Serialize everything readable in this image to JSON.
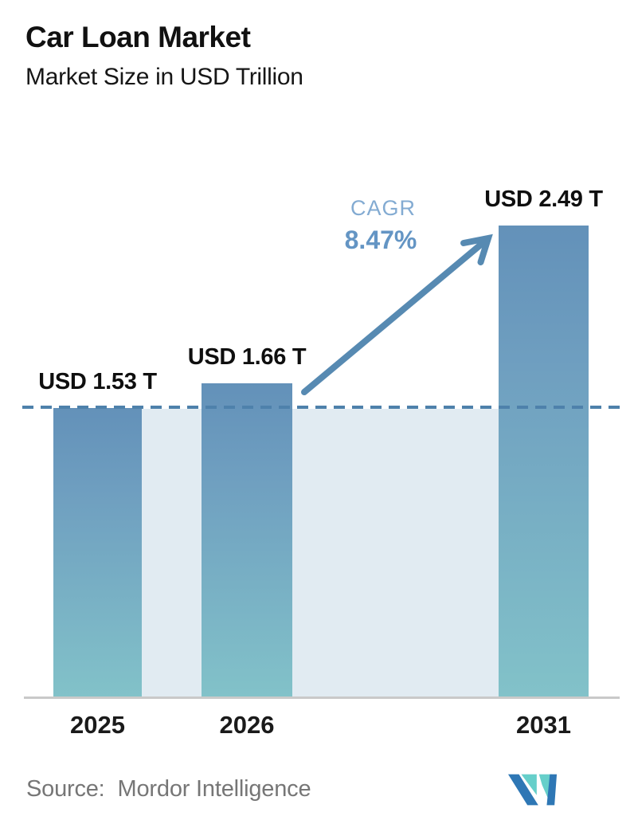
{
  "header": {
    "title": "Car Loan Market",
    "subtitle": "Market Size in USD Trillion"
  },
  "chart_data": {
    "type": "bar",
    "categories": [
      "2025",
      "2026",
      "2031"
    ],
    "values": [
      1.53,
      1.66,
      2.49
    ],
    "value_labels": [
      "USD 1.53 T",
      "USD 1.66 T",
      "USD 2.49 T"
    ],
    "title": "Car Loan Market",
    "subtitle": "Market Size in USD Trillion",
    "unit": "USD Trillion",
    "ylim": [
      0,
      2.49
    ],
    "baseline_reference_value": 1.53,
    "gridlines": "none",
    "annotations": {
      "cagr_label": "CAGR",
      "cagr_value": "8.47%"
    }
  },
  "footer": {
    "source_label": "Source:",
    "source_name": "Mordor Intelligence",
    "logo_name": "mordor-intelligence-logo"
  },
  "colors": {
    "bar_gradient_top": "#6391b9",
    "bar_gradient_bottom": "#82c2c9",
    "baseline_band": "#e1ebf2",
    "dashed_line": "#4e81ab",
    "arrow": "#578ab2",
    "cagr_label": "#83abd2",
    "cagr_value": "#6495c4",
    "axis_line": "#c9c9c9",
    "source_text": "#767676",
    "logo_teal": "#66cfca",
    "logo_blue": "#2e77b5"
  }
}
